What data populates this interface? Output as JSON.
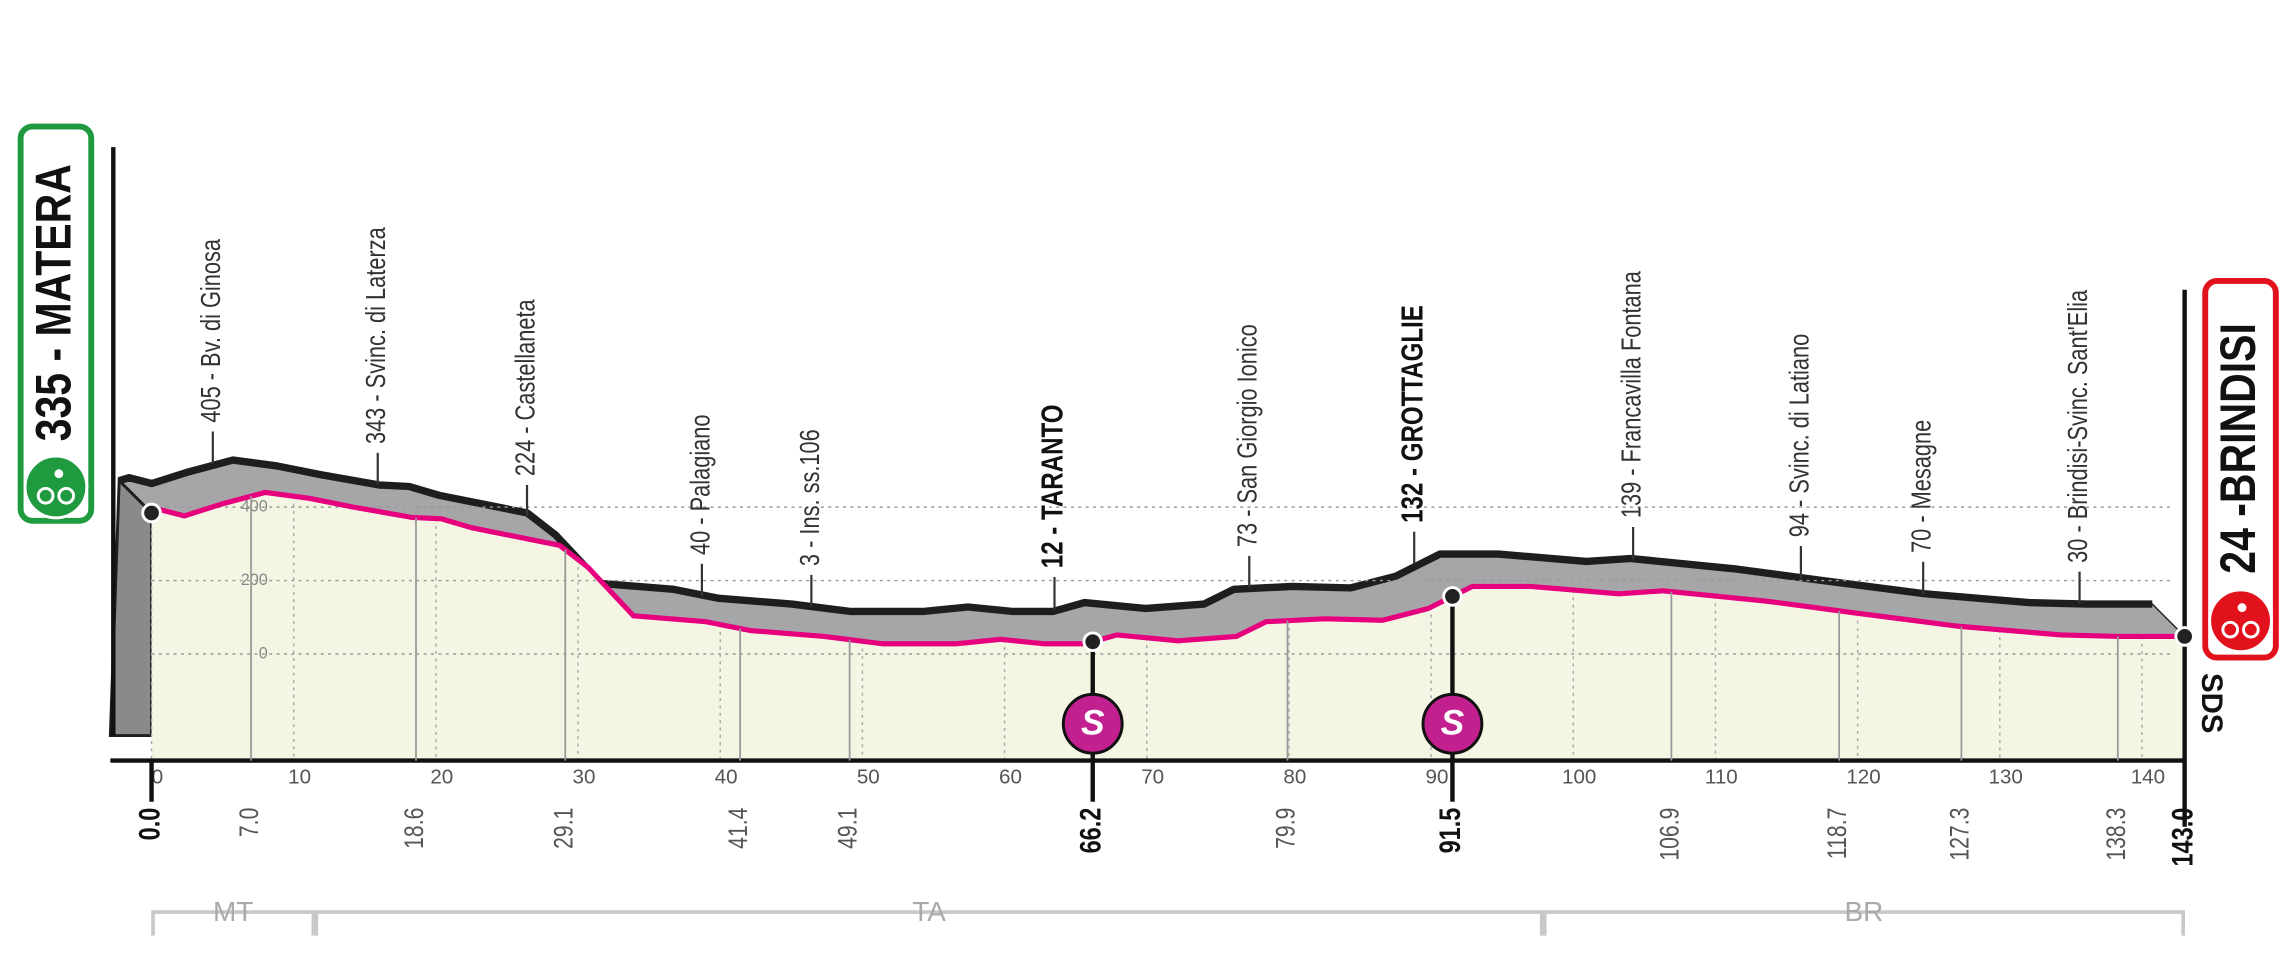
{
  "chart_data": {
    "type": "elevation-profile",
    "x": [
      0,
      0.7,
      2.3,
      4.9,
      8.0,
      11.1,
      14.2,
      18.3,
      20.4,
      22.5,
      28.7,
      30.7,
      33.9,
      39.0,
      42.1,
      47.3,
      51.4,
      56.6,
      59.7,
      62.8,
      65.7,
      67.9,
      72.2,
      76.3,
      78.4,
      82.5,
      86.6,
      89.8,
      92.9,
      97.0,
      103.2,
      106.3,
      113.6,
      119.8,
      127.0,
      134.3,
      138.4,
      143.0
    ],
    "values": [
      384,
      392,
      376,
      408,
      440,
      424,
      400,
      372,
      368,
      344,
      296,
      236,
      104,
      88,
      64,
      48,
      28,
      28,
      40,
      28,
      28,
      52,
      36,
      48,
      88,
      96,
      92,
      124,
      184,
      184,
      164,
      172,
      144,
      112,
      76,
      52,
      48,
      48
    ],
    "color": "#e6007e",
    "xlim": [
      0,
      143
    ],
    "xticks": [
      0,
      10,
      20,
      30,
      40,
      50,
      60,
      70,
      80,
      90,
      100,
      110,
      120,
      130,
      140
    ],
    "ylim": [
      -290,
      1380
    ],
    "yticks": [
      0,
      200,
      400
    ],
    "grid": true,
    "start": {
      "label": "335 - MATERA",
      "km": {
        "value": 0,
        "label": "0.0"
      }
    },
    "finish": {
      "label": "24 -BRINDISI",
      "km": {
        "value": 143,
        "label": "143.0"
      }
    },
    "sprint_symbol": "S",
    "waypoints": [
      {
        "label": "405 - Bv. di Ginosa",
        "km": {
          "value": 7,
          "label": "7.0"
        }
      },
      {
        "label": "343 - Svinc. di Laterza",
        "km": 18.6
      },
      {
        "label": "224 - Castellaneta",
        "km": 29.1
      },
      {
        "label": "40 - Palagiano",
        "km": 41.4
      },
      {
        "label": "3 - Ins. ss.106",
        "km": 49.1
      },
      {
        "label": "12 - TARANTO",
        "km": 66.2,
        "sprint": true
      },
      {
        "label": "73 - San Giorgio Ionico",
        "km": 79.9
      },
      {
        "label": "132 - GROTTAGLIE",
        "km": 91.5,
        "sprint": true
      },
      {
        "label": "139 - Francavilla Fontana",
        "km": 106.9
      },
      {
        "label": "94 - Svinc. di Latiano",
        "km": 118.7
      },
      {
        "label": "70 - Mesagne",
        "km": 127.3
      },
      {
        "label": "30 - Brindisi-Svinc. Sant'Elia",
        "km": 138.3
      }
    ],
    "regions": [
      {
        "label": "MT"
      },
      {
        "label": "TA"
      },
      {
        "label": "BR"
      }
    ],
    "logo": "SDS"
  }
}
